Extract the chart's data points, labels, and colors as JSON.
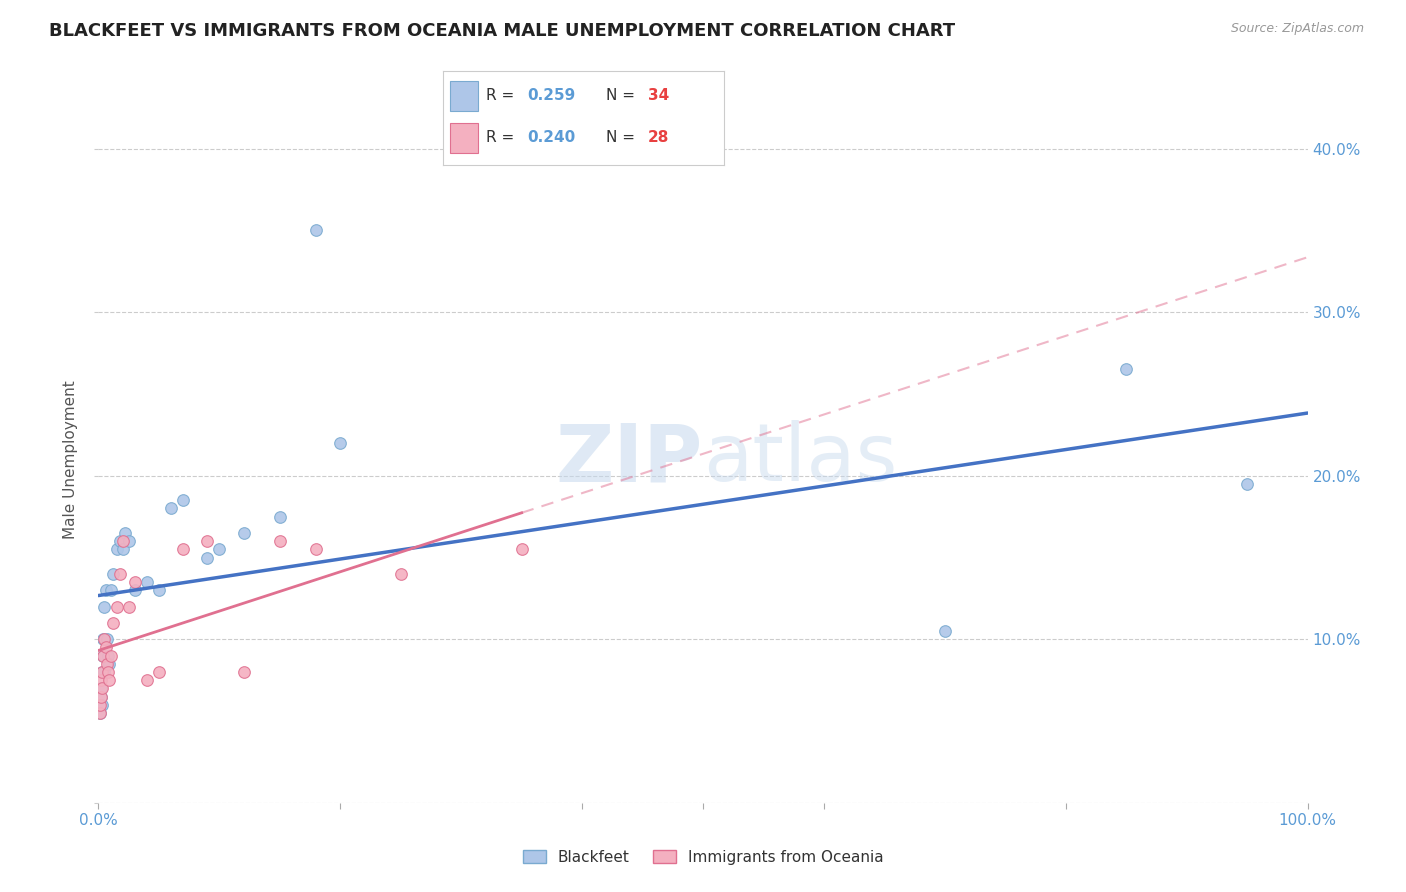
{
  "title": "BLACKFEET VS IMMIGRANTS FROM OCEANIA MALE UNEMPLOYMENT CORRELATION CHART",
  "source_text": "Source: ZipAtlas.com",
  "ylabel": "Male Unemployment",
  "watermark": "ZIPatlas",
  "series": [
    {
      "name": "Blackfeet",
      "R": "0.259",
      "N": "34",
      "marker_color": "#aec6e8",
      "marker_edge": "#7aaad0",
      "line_color": "#4472c4",
      "x": [
        0.001,
        0.002,
        0.002,
        0.003,
        0.003,
        0.004,
        0.004,
        0.005,
        0.005,
        0.006,
        0.007,
        0.008,
        0.009,
        0.01,
        0.012,
        0.015,
        0.018,
        0.02,
        0.022,
        0.025,
        0.03,
        0.04,
        0.05,
        0.06,
        0.07,
        0.09,
        0.1,
        0.12,
        0.15,
        0.18,
        0.2,
        0.7,
        0.85,
        0.95
      ],
      "y": [
        0.055,
        0.065,
        0.07,
        0.06,
        0.08,
        0.09,
        0.1,
        0.08,
        0.12,
        0.13,
        0.1,
        0.09,
        0.085,
        0.13,
        0.14,
        0.155,
        0.16,
        0.155,
        0.165,
        0.16,
        0.13,
        0.135,
        0.13,
        0.18,
        0.185,
        0.15,
        0.155,
        0.165,
        0.175,
        0.35,
        0.22,
        0.105,
        0.265,
        0.195
      ]
    },
    {
      "name": "Immigrants from Oceania",
      "R": "0.240",
      "N": "28",
      "marker_color": "#f4b0c0",
      "marker_edge": "#e07090",
      "line_color": "#e07090",
      "x": [
        0.001,
        0.001,
        0.002,
        0.002,
        0.003,
        0.003,
        0.004,
        0.005,
        0.006,
        0.007,
        0.008,
        0.009,
        0.01,
        0.012,
        0.015,
        0.018,
        0.02,
        0.025,
        0.03,
        0.04,
        0.05,
        0.07,
        0.09,
        0.12,
        0.15,
        0.18,
        0.25,
        0.35
      ],
      "y": [
        0.055,
        0.06,
        0.065,
        0.075,
        0.07,
        0.08,
        0.09,
        0.1,
        0.095,
        0.085,
        0.08,
        0.075,
        0.09,
        0.11,
        0.12,
        0.14,
        0.16,
        0.12,
        0.135,
        0.075,
        0.08,
        0.155,
        0.16,
        0.08,
        0.16,
        0.155,
        0.14,
        0.155
      ]
    }
  ],
  "xlim": [
    0.0,
    1.0
  ],
  "ylim": [
    0.0,
    0.42
  ],
  "xticks": [
    0.0,
    0.2,
    0.4,
    0.5,
    0.6,
    0.8,
    1.0
  ],
  "xticklabels": [
    "0.0%",
    "",
    "",
    "",
    "",
    "",
    "100.0%"
  ],
  "yticks": [
    0.0,
    0.1,
    0.2,
    0.3,
    0.4
  ],
  "right_yticklabels": [
    "",
    "10.0%",
    "20.0%",
    "30.0%",
    "40.0%"
  ],
  "grid_color": "#cccccc",
  "background_color": "#ffffff",
  "title_color": "#222222",
  "axis_tick_color": "#5b9bd5",
  "legend_R_color": "#5b9bd5",
  "legend_N_color": "#e84040",
  "marker_size": 70
}
